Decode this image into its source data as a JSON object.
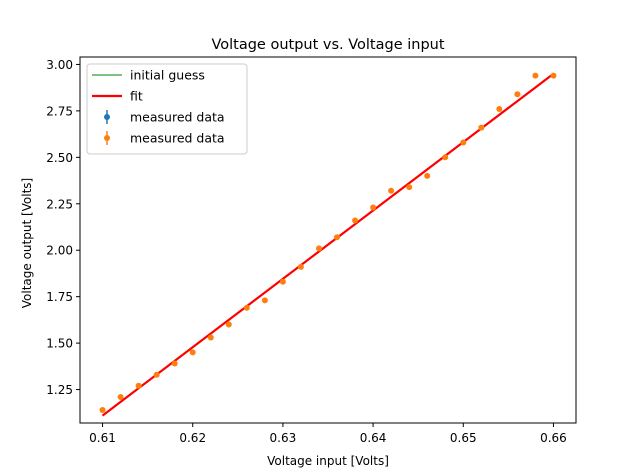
{
  "chart_data": {
    "type": "scatter",
    "title": "Voltage output vs. Voltage input",
    "xlabel": "Voltage input [Volts]",
    "ylabel": "Voltage output [Volts]",
    "xlim": [
      0.6075,
      0.6625
    ],
    "ylim": [
      1.07,
      3.04
    ],
    "x_ticks": [
      0.61,
      0.62,
      0.63,
      0.64,
      0.65,
      0.66
    ],
    "x_tick_labels": [
      "0.61",
      "0.62",
      "0.63",
      "0.64",
      "0.65",
      "0.66"
    ],
    "y_ticks": [
      1.25,
      1.5,
      1.75,
      2.0,
      2.25,
      2.5,
      2.75,
      3.0
    ],
    "y_tick_labels": [
      "1.25",
      "1.50",
      "1.75",
      "2.00",
      "2.25",
      "2.50",
      "2.75",
      "3.00"
    ],
    "grid": false,
    "legend_position": "top-left",
    "legend": [
      {
        "label": "initial guess",
        "kind": "line",
        "color": "#008000"
      },
      {
        "label": " fit",
        "kind": "line",
        "color": "#ff0000"
      },
      {
        "label": "measured data",
        "kind": "errorbar",
        "color": "#1f77b4"
      },
      {
        "label": "measured data",
        "kind": "errorbar",
        "color": "#ff7f0e"
      }
    ],
    "series": [
      {
        "name": " fit",
        "kind": "line",
        "color": "#ff0000",
        "x": [
          0.61,
          0.66
        ],
        "y": [
          1.11,
          2.95
        ]
      },
      {
        "name": "measured data",
        "kind": "points",
        "color": "#ff7f0e",
        "x": [
          0.61,
          0.612,
          0.614,
          0.616,
          0.618,
          0.62,
          0.622,
          0.624,
          0.626,
          0.628,
          0.63,
          0.632,
          0.634,
          0.636,
          0.638,
          0.64,
          0.642,
          0.644,
          0.646,
          0.648,
          0.65,
          0.652,
          0.654,
          0.656,
          0.658,
          0.66
        ],
        "y": [
          1.14,
          1.21,
          1.27,
          1.33,
          1.39,
          1.45,
          1.53,
          1.6,
          1.69,
          1.73,
          1.83,
          1.91,
          2.01,
          2.07,
          2.16,
          2.23,
          2.32,
          2.34,
          2.4,
          2.5,
          2.58,
          2.66,
          2.76,
          2.84,
          2.94,
          2.94
        ]
      }
    ]
  }
}
